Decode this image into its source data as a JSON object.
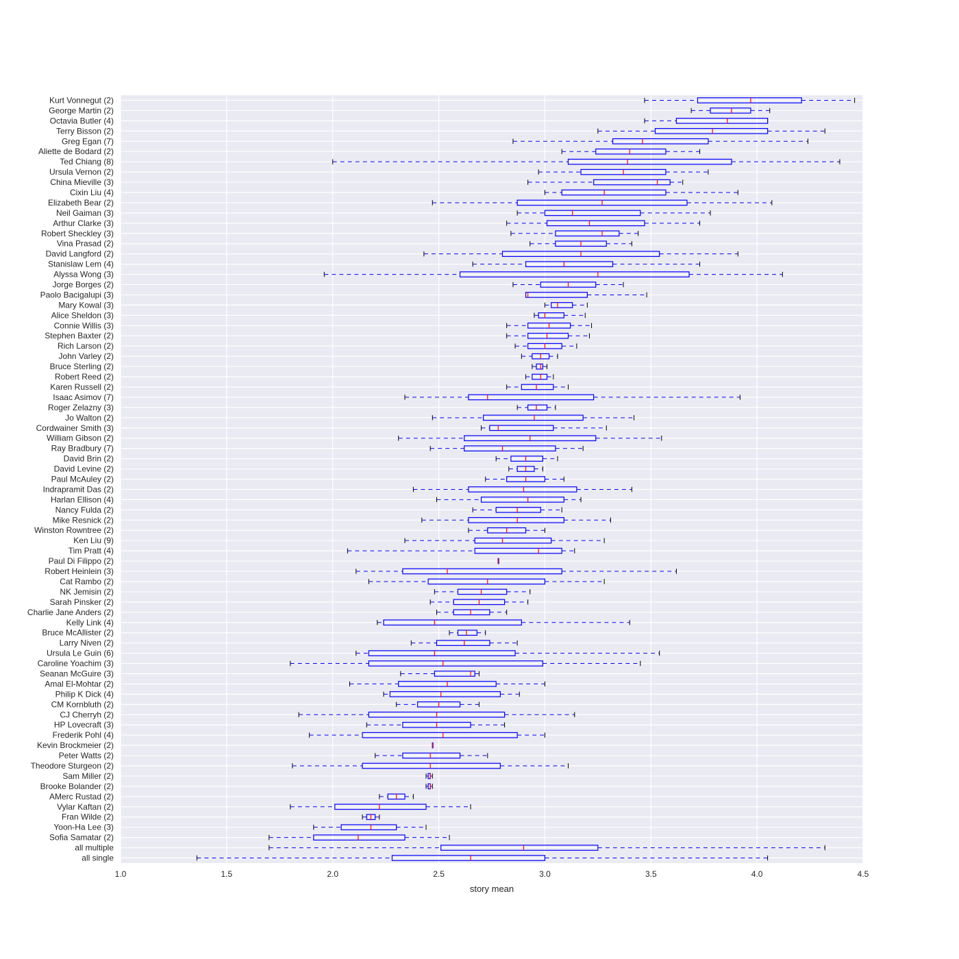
{
  "chart_data": {
    "type": "boxplot",
    "orientation": "horizontal",
    "title": "",
    "xlabel": "story mean",
    "ylabel": "",
    "xlim": [
      1.0,
      4.5
    ],
    "xticks": [
      "1.0",
      "1.5",
      "2.0",
      "2.5",
      "3.0",
      "3.5",
      "4.0",
      "4.5"
    ],
    "grid": true,
    "colors": {
      "background": "#eaeaf2",
      "grid": "#ffffff",
      "box": "#0000ff",
      "median": "#ff0000",
      "whisker": "#0000ff",
      "text": "#262626"
    },
    "series": [
      {
        "label": "Kurt Vonnegut (2)",
        "min": 3.47,
        "q1": 3.72,
        "median": 3.97,
        "q3": 4.21,
        "max": 4.46
      },
      {
        "label": "George Martin (2)",
        "min": 3.69,
        "q1": 3.78,
        "median": 3.88,
        "q3": 3.97,
        "max": 4.06
      },
      {
        "label": "Octavia Butler (4)",
        "min": 3.47,
        "q1": 3.62,
        "median": 3.86,
        "q3": 4.05,
        "max": 4.05
      },
      {
        "label": "Terry Bisson (2)",
        "min": 3.25,
        "q1": 3.52,
        "median": 3.79,
        "q3": 4.05,
        "max": 4.32
      },
      {
        "label": "Greg Egan (7)",
        "min": 2.85,
        "q1": 3.32,
        "median": 3.46,
        "q3": 3.77,
        "max": 4.24
      },
      {
        "label": "Aliette de Bodard (2)",
        "min": 3.08,
        "q1": 3.24,
        "median": 3.4,
        "q3": 3.57,
        "max": 3.73
      },
      {
        "label": "Ted Chiang (8)",
        "min": 2.0,
        "q1": 3.11,
        "median": 3.39,
        "q3": 3.88,
        "max": 4.39
      },
      {
        "label": "Ursula Vernon (2)",
        "min": 2.97,
        "q1": 3.17,
        "median": 3.37,
        "q3": 3.57,
        "max": 3.77
      },
      {
        "label": "China Mieville (3)",
        "min": 2.92,
        "q1": 3.23,
        "median": 3.53,
        "q3": 3.59,
        "max": 3.65
      },
      {
        "label": "Cixin Liu (4)",
        "min": 3.0,
        "q1": 3.08,
        "median": 3.28,
        "q3": 3.57,
        "max": 3.91
      },
      {
        "label": "Elizabeth Bear (2)",
        "min": 2.47,
        "q1": 2.87,
        "median": 3.27,
        "q3": 3.67,
        "max": 4.07
      },
      {
        "label": "Neil Gaiman (3)",
        "min": 2.87,
        "q1": 3.0,
        "median": 3.13,
        "q3": 3.45,
        "max": 3.78
      },
      {
        "label": "Arthur Clarke (3)",
        "min": 2.82,
        "q1": 3.01,
        "median": 3.21,
        "q3": 3.47,
        "max": 3.73
      },
      {
        "label": "Robert Sheckley (3)",
        "min": 2.84,
        "q1": 3.05,
        "median": 3.27,
        "q3": 3.35,
        "max": 3.44
      },
      {
        "label": "Vina Prasad (2)",
        "min": 2.93,
        "q1": 3.05,
        "median": 3.17,
        "q3": 3.29,
        "max": 3.41
      },
      {
        "label": "David Langford (2)",
        "min": 2.43,
        "q1": 2.8,
        "median": 3.17,
        "q3": 3.54,
        "max": 3.91
      },
      {
        "label": "Stanislaw Lem (4)",
        "min": 2.66,
        "q1": 2.91,
        "median": 3.09,
        "q3": 3.32,
        "max": 3.73
      },
      {
        "label": "Alyssa Wong (3)",
        "min": 1.96,
        "q1": 2.6,
        "median": 3.25,
        "q3": 3.68,
        "max": 4.12
      },
      {
        "label": "Jorge Borges (2)",
        "min": 2.85,
        "q1": 2.98,
        "median": 3.11,
        "q3": 3.24,
        "max": 3.37
      },
      {
        "label": "Paolo Bacigalupi (3)",
        "min": 2.91,
        "q1": 2.91,
        "median": 2.92,
        "q3": 3.2,
        "max": 3.48
      },
      {
        "label": "Mary Kowal (3)",
        "min": 3.0,
        "q1": 3.03,
        "median": 3.06,
        "q3": 3.13,
        "max": 3.2
      },
      {
        "label": "Alice Sheldon (3)",
        "min": 2.95,
        "q1": 2.97,
        "median": 3.0,
        "q3": 3.09,
        "max": 3.19
      },
      {
        "label": "Connie Willis (3)",
        "min": 2.82,
        "q1": 2.92,
        "median": 3.02,
        "q3": 3.12,
        "max": 3.22
      },
      {
        "label": "Stephen Baxter (2)",
        "min": 2.82,
        "q1": 2.92,
        "median": 3.01,
        "q3": 3.11,
        "max": 3.21
      },
      {
        "label": "Rich Larson (2)",
        "min": 2.86,
        "q1": 2.92,
        "median": 3.0,
        "q3": 3.08,
        "max": 3.15
      },
      {
        "label": "John Varley (2)",
        "min": 2.89,
        "q1": 2.94,
        "median": 2.98,
        "q3": 3.02,
        "max": 3.06
      },
      {
        "label": "Bruce Sterling (2)",
        "min": 2.94,
        "q1": 2.96,
        "median": 2.98,
        "q3": 2.99,
        "max": 3.01
      },
      {
        "label": "Robert Reed (2)",
        "min": 2.91,
        "q1": 2.94,
        "median": 2.98,
        "q3": 3.01,
        "max": 3.04
      },
      {
        "label": "Karen Russell (2)",
        "min": 2.82,
        "q1": 2.89,
        "median": 2.96,
        "q3": 3.04,
        "max": 3.11
      },
      {
        "label": "Isaac Asimov (7)",
        "min": 2.34,
        "q1": 2.64,
        "median": 2.73,
        "q3": 3.23,
        "max": 3.92
      },
      {
        "label": "Roger Zelazny (3)",
        "min": 2.87,
        "q1": 2.92,
        "median": 2.96,
        "q3": 3.01,
        "max": 3.05
      },
      {
        "label": "Jo Walton (2)",
        "min": 2.47,
        "q1": 2.71,
        "median": 2.95,
        "q3": 3.18,
        "max": 3.42
      },
      {
        "label": "Cordwainer Smith (3)",
        "min": 2.7,
        "q1": 2.74,
        "median": 2.78,
        "q3": 3.04,
        "max": 3.29
      },
      {
        "label": "William Gibson (2)",
        "min": 2.31,
        "q1": 2.62,
        "median": 2.93,
        "q3": 3.24,
        "max": 3.55
      },
      {
        "label": "Ray Bradbury (7)",
        "min": 2.46,
        "q1": 2.62,
        "median": 2.8,
        "q3": 3.05,
        "max": 3.18
      },
      {
        "label": "David Brin (2)",
        "min": 2.77,
        "q1": 2.84,
        "median": 2.91,
        "q3": 2.99,
        "max": 3.06
      },
      {
        "label": "David Levine (2)",
        "min": 2.83,
        "q1": 2.87,
        "median": 2.91,
        "q3": 2.95,
        "max": 2.99
      },
      {
        "label": "Paul McAuley (2)",
        "min": 2.72,
        "q1": 2.82,
        "median": 2.91,
        "q3": 3.0,
        "max": 3.09
      },
      {
        "label": "Indrapramit Das (2)",
        "min": 2.38,
        "q1": 2.64,
        "median": 2.9,
        "q3": 3.15,
        "max": 3.41
      },
      {
        "label": "Harlan Ellison (4)",
        "min": 2.49,
        "q1": 2.7,
        "median": 2.92,
        "q3": 3.09,
        "max": 3.17
      },
      {
        "label": "Nancy Fulda (2)",
        "min": 2.66,
        "q1": 2.77,
        "median": 2.87,
        "q3": 2.98,
        "max": 3.08
      },
      {
        "label": "Mike Resnick (2)",
        "min": 2.42,
        "q1": 2.64,
        "median": 2.87,
        "q3": 3.09,
        "max": 3.31
      },
      {
        "label": "Winston Rowntree (2)",
        "min": 2.64,
        "q1": 2.73,
        "median": 2.82,
        "q3": 2.91,
        "max": 3.0
      },
      {
        "label": "Ken Liu (9)",
        "min": 2.34,
        "q1": 2.67,
        "median": 2.8,
        "q3": 3.03,
        "max": 3.28
      },
      {
        "label": "Tim Pratt (4)",
        "min": 2.07,
        "q1": 2.67,
        "median": 2.97,
        "q3": 3.08,
        "max": 3.14
      },
      {
        "label": "Paul Di Filippo (2)",
        "min": 2.78,
        "q1": 2.78,
        "median": 2.78,
        "q3": 2.78,
        "max": 2.78
      },
      {
        "label": "Robert Heinlein (3)",
        "min": 2.11,
        "q1": 2.33,
        "median": 2.54,
        "q3": 3.08,
        "max": 3.62
      },
      {
        "label": "Cat Rambo (2)",
        "min": 2.17,
        "q1": 2.45,
        "median": 2.73,
        "q3": 3.0,
        "max": 3.28
      },
      {
        "label": "NK Jemisin (2)",
        "min": 2.48,
        "q1": 2.59,
        "median": 2.7,
        "q3": 2.82,
        "max": 2.93
      },
      {
        "label": "Sarah Pinsker (2)",
        "min": 2.46,
        "q1": 2.57,
        "median": 2.69,
        "q3": 2.81,
        "max": 2.92
      },
      {
        "label": "Charlie Jane Anders (2)",
        "min": 2.49,
        "q1": 2.57,
        "median": 2.65,
        "q3": 2.74,
        "max": 2.82
      },
      {
        "label": "Kelly Link (4)",
        "min": 2.21,
        "q1": 2.24,
        "median": 2.48,
        "q3": 2.89,
        "max": 3.4
      },
      {
        "label": "Bruce McAllister (2)",
        "min": 2.55,
        "q1": 2.59,
        "median": 2.63,
        "q3": 2.68,
        "max": 2.72
      },
      {
        "label": "Larry Niven (2)",
        "min": 2.37,
        "q1": 2.49,
        "median": 2.62,
        "q3": 2.74,
        "max": 2.87
      },
      {
        "label": "Ursula Le Guin (6)",
        "min": 2.11,
        "q1": 2.17,
        "median": 2.48,
        "q3": 2.86,
        "max": 3.54
      },
      {
        "label": "Caroline Yoachim (3)",
        "min": 1.8,
        "q1": 2.17,
        "median": 2.52,
        "q3": 2.99,
        "max": 3.45
      },
      {
        "label": "Seanan McGuire (3)",
        "min": 2.32,
        "q1": 2.48,
        "median": 2.65,
        "q3": 2.67,
        "max": 2.69
      },
      {
        "label": "Amal El-Mohtar (2)",
        "min": 2.08,
        "q1": 2.31,
        "median": 2.54,
        "q3": 2.77,
        "max": 3.0
      },
      {
        "label": "Philip K Dick (4)",
        "min": 2.24,
        "q1": 2.27,
        "median": 2.51,
        "q3": 2.79,
        "max": 2.88
      },
      {
        "label": "CM Kornbluth (2)",
        "min": 2.3,
        "q1": 2.4,
        "median": 2.5,
        "q3": 2.6,
        "max": 2.69
      },
      {
        "label": "CJ Cherryh (2)",
        "min": 1.84,
        "q1": 2.17,
        "median": 2.49,
        "q3": 2.81,
        "max": 3.14
      },
      {
        "label": "HP Lovecraft (3)",
        "min": 2.16,
        "q1": 2.33,
        "median": 2.49,
        "q3": 2.65,
        "max": 2.81
      },
      {
        "label": "Frederik Pohl (4)",
        "min": 1.89,
        "q1": 2.14,
        "median": 2.52,
        "q3": 2.87,
        "max": 3.0
      },
      {
        "label": "Kevin Brockmeier (2)",
        "min": 2.47,
        "q1": 2.47,
        "median": 2.47,
        "q3": 2.47,
        "max": 2.47
      },
      {
        "label": "Peter Watts (2)",
        "min": 2.2,
        "q1": 2.33,
        "median": 2.46,
        "q3": 2.6,
        "max": 2.73
      },
      {
        "label": "Theodore Sturgeon (2)",
        "min": 1.81,
        "q1": 2.14,
        "median": 2.46,
        "q3": 2.79,
        "max": 3.11
      },
      {
        "label": "Sam Miller (2)",
        "min": 2.44,
        "q1": 2.45,
        "median": 2.46,
        "q3": 2.46,
        "max": 2.47
      },
      {
        "label": "Brooke Bolander (2)",
        "min": 2.44,
        "q1": 2.45,
        "median": 2.46,
        "q3": 2.46,
        "max": 2.47
      },
      {
        "label": "AMerc Rustad (2)",
        "min": 2.22,
        "q1": 2.26,
        "median": 2.3,
        "q3": 2.34,
        "max": 2.38
      },
      {
        "label": "Vylar Kaftan (2)",
        "min": 1.8,
        "q1": 2.01,
        "median": 2.22,
        "q3": 2.44,
        "max": 2.65
      },
      {
        "label": "Fran Wilde (2)",
        "min": 2.14,
        "q1": 2.16,
        "median": 2.18,
        "q3": 2.2,
        "max": 2.22
      },
      {
        "label": "Yoon-Ha Lee (3)",
        "min": 1.91,
        "q1": 2.04,
        "median": 2.18,
        "q3": 2.3,
        "max": 2.44
      },
      {
        "label": "Sofia Samatar (2)",
        "min": 1.7,
        "q1": 1.91,
        "median": 2.12,
        "q3": 2.34,
        "max": 2.55
      },
      {
        "label": "all multiple",
        "min": 1.7,
        "q1": 2.51,
        "median": 2.9,
        "q3": 3.25,
        "max": 4.32
      },
      {
        "label": "all single",
        "min": 1.36,
        "q1": 2.28,
        "median": 2.65,
        "q3": 3.0,
        "max": 4.05
      }
    ]
  }
}
